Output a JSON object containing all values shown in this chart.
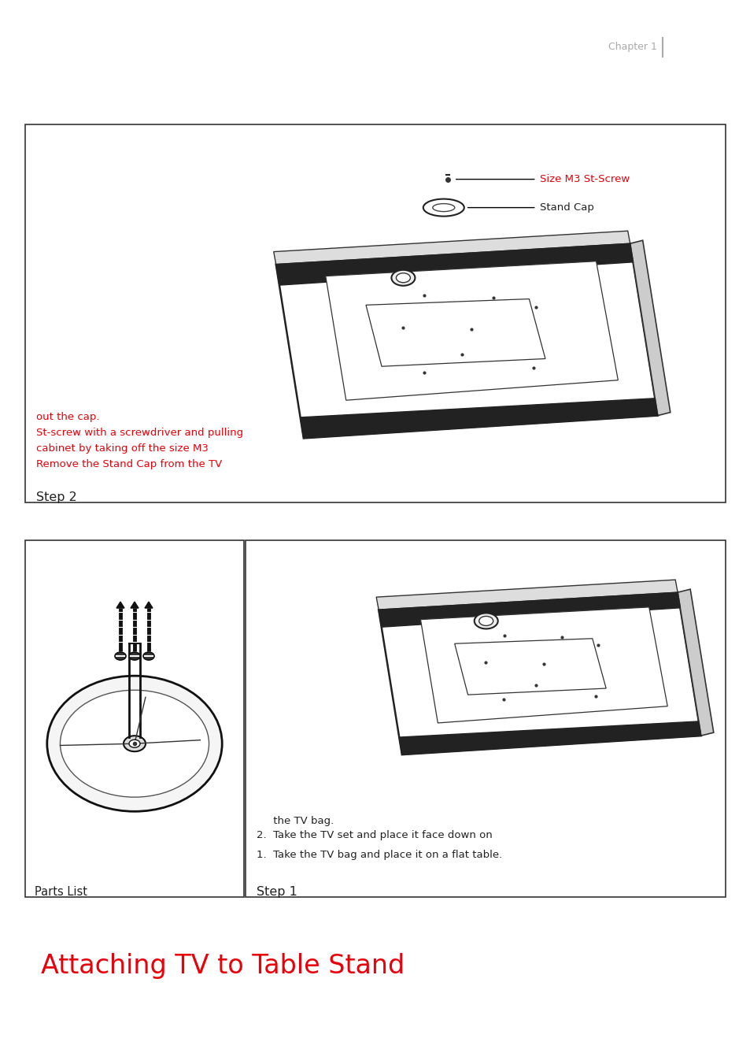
{
  "title": "Attaching TV to Table Stand",
  "title_color": "#e8000a",
  "title_fontsize": 24,
  "background_color": "#ffffff",
  "parts_list_label": "Parts List",
  "step1_label": "Step 1",
  "step1_line1": "1.  Take the TV bag and place it on a flat table.",
  "step1_line2": "2.  Take the TV set and place it face down on",
  "step1_line3": "     the TV bag.",
  "step2_label": "Step 2",
  "step2_text_color": "#e8000a",
  "step2_line1": "Remove the Stand Cap from the TV",
  "step2_line2": "cabinet by taking off the size M3",
  "step2_line3": "St-screw with a screwdriver and pulling",
  "step2_line4": "out the cap.",
  "stand_cap_label": "Stand Cap",
  "screw_label": "Size M3 St-Screw",
  "chapter_text": "Chapter 1",
  "chapter_color": "#aaaaaa"
}
